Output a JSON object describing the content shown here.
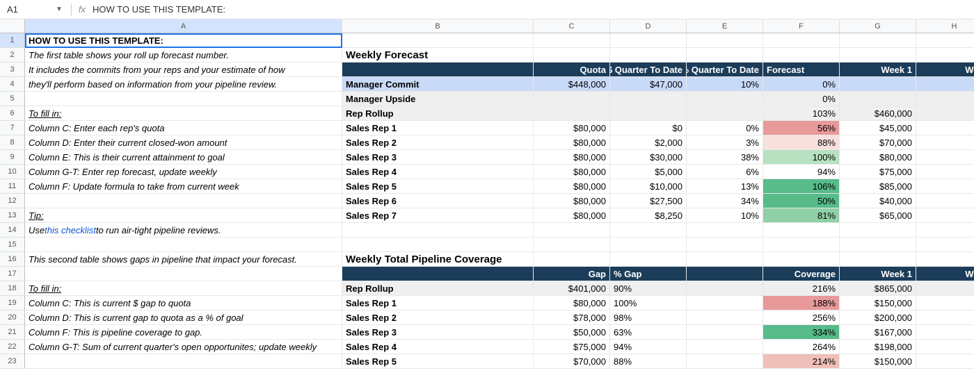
{
  "formulaBar": {
    "nameBox": "A1",
    "fxLabel": "fx",
    "formula": "HOW TO USE THIS TEMPLATE:"
  },
  "columns": [
    "A",
    "B",
    "C",
    "D",
    "E",
    "F",
    "G",
    "H"
  ],
  "colWidths": {
    "A": 456,
    "B": 275,
    "C": 110,
    "D": 110,
    "E": 110,
    "F": 110,
    "G": 110,
    "H": 110
  },
  "rowCount": 23,
  "selectedCell": "A1",
  "instructions": {
    "r1": "HOW TO USE THIS TEMPLATE:",
    "r2": "The first table shows your roll up forecast number.",
    "r3": "It includes the commits from your reps and your estimate of how",
    "r4": "they'll perform based on information from your pipeline review.",
    "r6": "To fill in:",
    "r7": "Column C: Enter each rep's quota",
    "r8": "Column D: Enter their current closed-won amount",
    "r9": "Column E: This is their current attainment to goal",
    "r10": "Column G-T: Enter rep forecast, update weekly",
    "r11": "Column F: Update formula to take from current week",
    "r13": "Tip:",
    "r14_pre": "Use ",
    "r14_link": "this checklist",
    "r14_post": " to run air-tight pipeline reviews.",
    "r16": "This second table shows gaps in pipeline that impact your forecast.",
    "r18": "To fill in:",
    "r19": "Column C: This is current $ gap to quota",
    "r20": "Column D: This is current gap to quota as a % of goal",
    "r21": "Column F: This is pipeline coverage to gap.",
    "r22": "Column G-T: Sum of current quarter's open opportunites; update weekly"
  },
  "forecast": {
    "title": "Weekly Forecast",
    "headers": {
      "c": "Quota",
      "d": "$ Quarter To Date",
      "e": "% Quarter To Date",
      "f": "Forecast",
      "g": "Week 1",
      "h": "Week"
    },
    "rows": [
      {
        "label": "Manager Commit",
        "c": "$448,000",
        "d": "$47,000",
        "e": "10%",
        "f": "0%",
        "g": "",
        "h": "",
        "bg": "bg-blue-lt",
        "f_color": ""
      },
      {
        "label": "Manager Upside",
        "c": "",
        "d": "",
        "e": "",
        "f": "0%",
        "g": "",
        "h": "",
        "bg": "bg-grey-lt",
        "f_color": ""
      },
      {
        "label": "Rep Rollup",
        "c": "",
        "d": "",
        "e": "",
        "f": "103%",
        "g": "$460,000",
        "h": "$",
        "bg": "bg-grey-lt",
        "f_color": ""
      },
      {
        "label": "Sales Rep 1",
        "c": "$80,000",
        "d": "$0",
        "e": "0%",
        "f": "56%",
        "g": "$45,000",
        "h": "",
        "bg": "",
        "f_color": "#e89999"
      },
      {
        "label": "Sales Rep 2",
        "c": "$80,000",
        "d": "$2,000",
        "e": "3%",
        "f": "88%",
        "g": "$70,000",
        "h": "",
        "bg": "",
        "f_color": "#f7e0dd"
      },
      {
        "label": "Sales Rep 3",
        "c": "$80,000",
        "d": "$30,000",
        "e": "38%",
        "f": "100%",
        "g": "$80,000",
        "h": "",
        "bg": "",
        "f_color": "#b7e1c1"
      },
      {
        "label": "Sales Rep 4",
        "c": "$80,000",
        "d": "$5,000",
        "e": "6%",
        "f": "94%",
        "g": "$75,000",
        "h": "",
        "bg": "",
        "f_color": ""
      },
      {
        "label": "Sales Rep 5",
        "c": "$80,000",
        "d": "$10,000",
        "e": "13%",
        "f": "106%",
        "g": "$85,000",
        "h": "",
        "bg": "",
        "f_color": "#57bb8a"
      },
      {
        "label": "Sales Rep 6",
        "c": "$80,000",
        "d": "$27,500",
        "e": "34%",
        "f": "50%",
        "g": "$40,000",
        "h": "",
        "bg": "",
        "f_color": "#57bb8a"
      },
      {
        "label": "Sales Rep 7",
        "c": "$80,000",
        "d": "$8,250",
        "e": "10%",
        "f": "81%",
        "g": "$65,000",
        "h": "",
        "bg": "",
        "f_color": "#8fd0a6"
      }
    ]
  },
  "pipeline": {
    "title": "Weekly Total Pipeline Coverage",
    "headers": {
      "c": "Gap",
      "d": "% Gap",
      "e": "",
      "f": "Coverage",
      "g": "Week 1",
      "h": "Week"
    },
    "rows": [
      {
        "label": "Rep Rollup",
        "c": "$401,000",
        "d": "90%",
        "e": "",
        "f": "216%",
        "g": "$865,000",
        "h": "$",
        "bg": "bg-grey-lt",
        "f_color": ""
      },
      {
        "label": "Sales Rep 1",
        "c": "$80,000",
        "d": "100%",
        "e": "",
        "f": "188%",
        "g": "$150,000",
        "h": "",
        "bg": "",
        "f_color": "#e89999"
      },
      {
        "label": "Sales Rep 2",
        "c": "$78,000",
        "d": "98%",
        "e": "",
        "f": "256%",
        "g": "$200,000",
        "h": "",
        "bg": "",
        "f_color": ""
      },
      {
        "label": "Sales Rep 3",
        "c": "$50,000",
        "d": "63%",
        "e": "",
        "f": "334%",
        "g": "$167,000",
        "h": "",
        "bg": "",
        "f_color": "#57bb8a"
      },
      {
        "label": "Sales Rep 4",
        "c": "$75,000",
        "d": "94%",
        "e": "",
        "f": "264%",
        "g": "$198,000",
        "h": "",
        "bg": "",
        "f_color": ""
      },
      {
        "label": "Sales Rep 5",
        "c": "$70,000",
        "d": "88%",
        "e": "",
        "f": "214%",
        "g": "$150,000",
        "h": "",
        "bg": "",
        "f_color": "#efc0b9"
      }
    ]
  },
  "colors": {
    "headerDark": "#1c3d5a",
    "selectedBorder": "#1a73e8",
    "gridLine": "#e8e8e8"
  }
}
